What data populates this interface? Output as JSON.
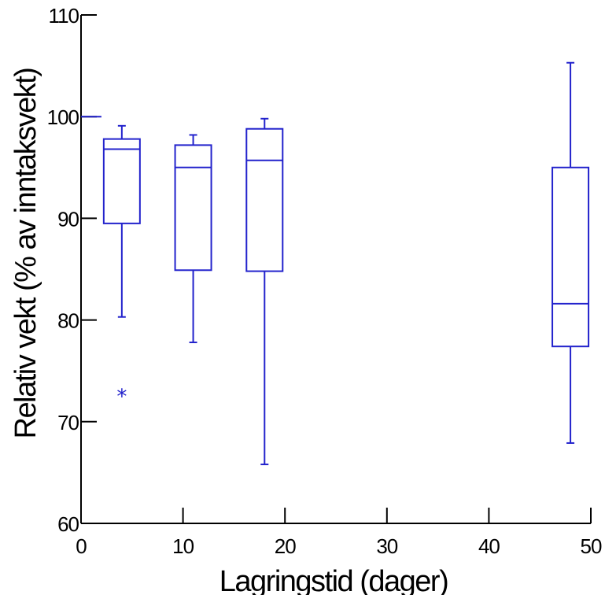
{
  "chart_data": {
    "type": "box",
    "xlabel": "Lagringstid (dager)",
    "ylabel": "Relativ vekt (% av inntaksvekt)",
    "xlim": [
      0,
      50
    ],
    "ylim": [
      60,
      110
    ],
    "x_ticks": [
      0,
      10,
      20,
      30,
      40,
      50
    ],
    "y_ticks": [
      60,
      70,
      80,
      90,
      100,
      110
    ],
    "grid": false,
    "color": "#2222cc",
    "reference_line": {
      "y": 100,
      "x_from": 0,
      "x_to": 2
    },
    "boxes": [
      {
        "x": 4,
        "whisker_low": 80.3,
        "q1": 89.5,
        "median": 96.8,
        "q3": 97.8,
        "whisker_high": 99.1,
        "outliers": [
          72.9
        ]
      },
      {
        "x": 11,
        "whisker_low": 77.8,
        "q1": 84.9,
        "median": 95.0,
        "q3": 97.2,
        "whisker_high": 98.2,
        "outliers": []
      },
      {
        "x": 18,
        "whisker_low": 65.8,
        "q1": 84.8,
        "median": 95.7,
        "q3": 98.8,
        "whisker_high": 99.8,
        "outliers": []
      },
      {
        "x": 48,
        "whisker_low": 67.9,
        "q1": 77.4,
        "median": 81.6,
        "q3": 95.0,
        "whisker_high": 105.3,
        "outliers": []
      }
    ]
  }
}
